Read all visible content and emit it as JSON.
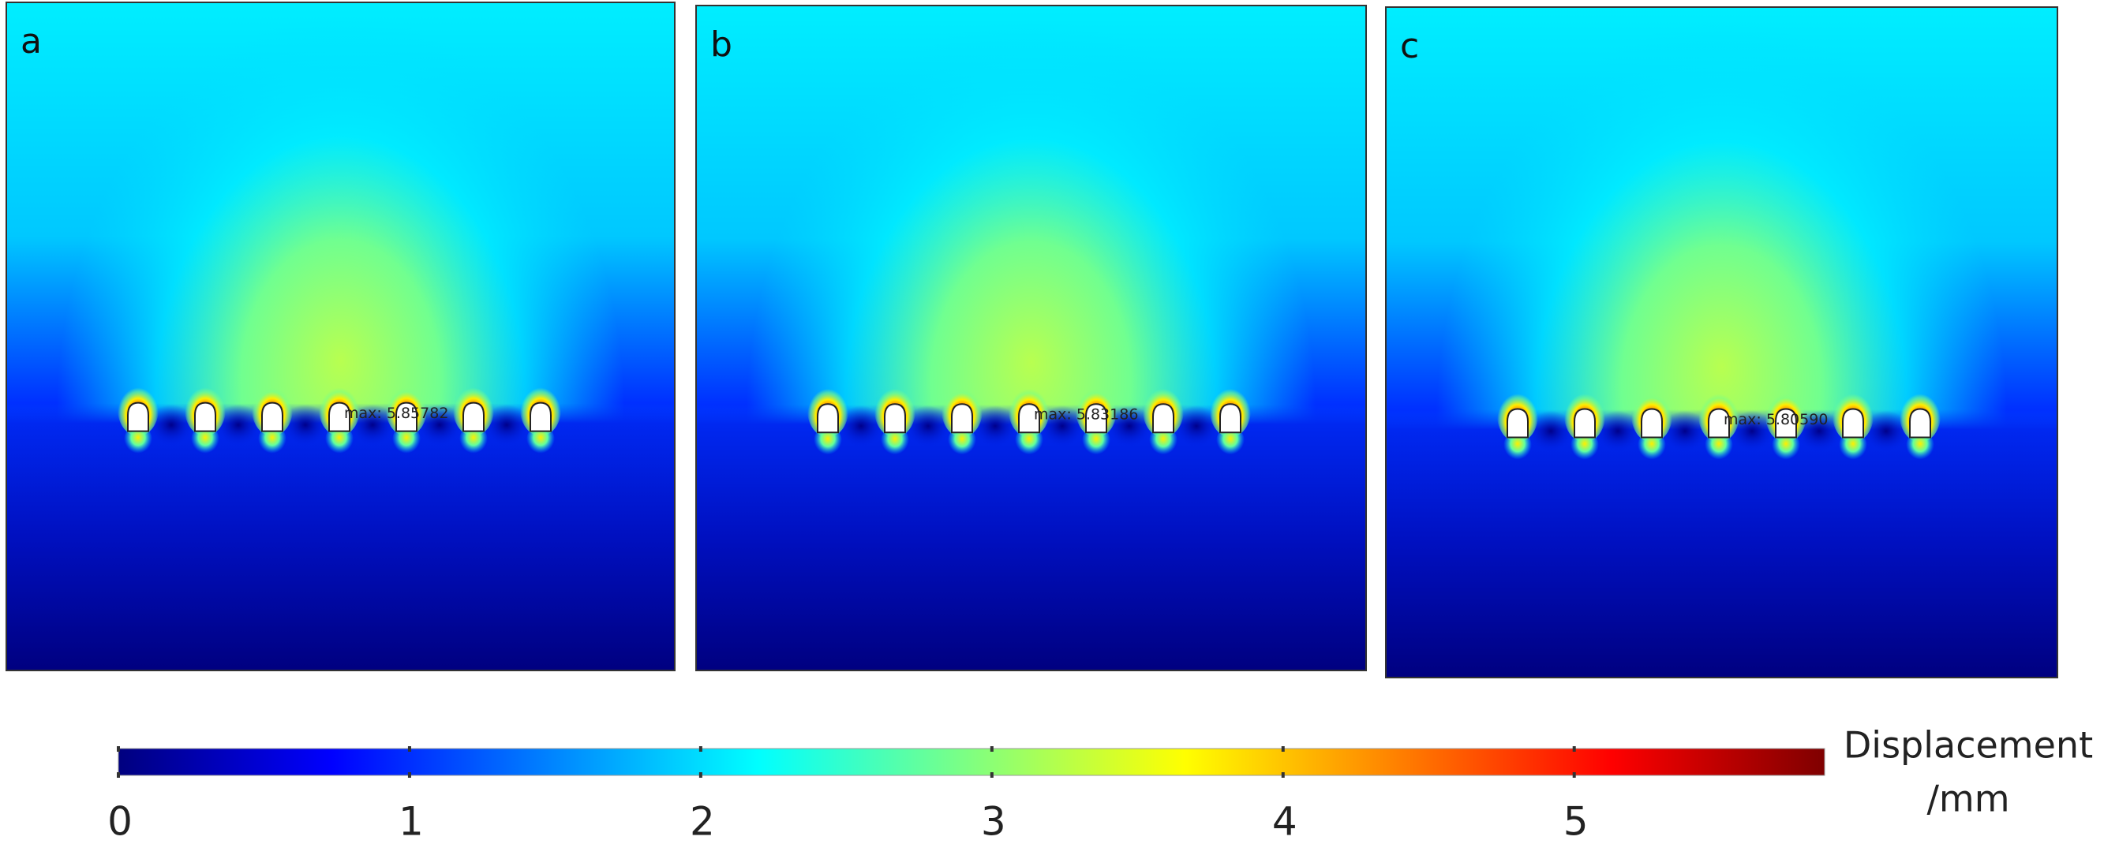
{
  "chart_data": {
    "type": "field",
    "panels": [
      {
        "label": "a",
        "max_label": "max: 5.85782"
      },
      {
        "label": "b",
        "max_label": "max: 5.83186"
      },
      {
        "label": "c",
        "max_label": "max: 5.80590"
      }
    ],
    "colorbar": {
      "label": [
        "Displacement",
        "/mm"
      ],
      "lim": [
        0,
        5.86
      ],
      "ticks": [
        0,
        1,
        2,
        3,
        4,
        5
      ],
      "colormap": [
        "#00007f",
        "#0000ff",
        "#0080ff",
        "#00ffff",
        "#80ff80",
        "#ffff00",
        "#ff8000",
        "#ff0000",
        "#7f0000"
      ]
    }
  }
}
